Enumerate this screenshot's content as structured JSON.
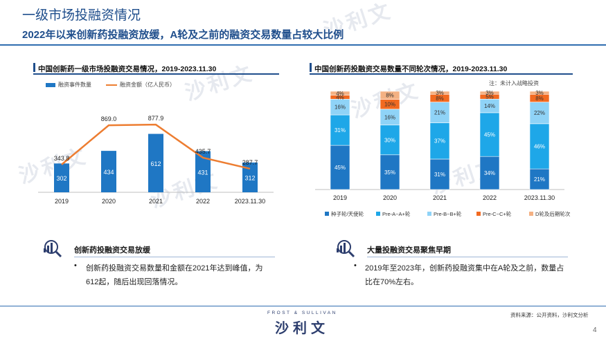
{
  "page": {
    "title": "一级市场投融资情况",
    "subtitle": "2022年以来创新药投融资放缓，A轮及之前的融资交易数量占较大比例",
    "page_number": "4",
    "source": "资料来源：公开资料，沙利文分析",
    "brand_small": "FROST & SULLIVAN",
    "brand_large": "沙利文",
    "watermark": "沙利文"
  },
  "left_panel": {
    "title": "中国创新药一级市场投融资交易情况，2019-2023.11.30",
    "legend": [
      "融资事件数量",
      "融资金额（亿人民币）"
    ]
  },
  "right_panel": {
    "title": "中国创新药投融资交易数量不同轮次情况，2019-2023.11.30",
    "note": "注：未计入战略投资",
    "legend": [
      "种子轮/天使轮",
      "Pre-A~A+轮",
      "Pre-B~B+轮",
      "Pre-C~C+轮",
      "D轮及后期轮次"
    ]
  },
  "chart_data": [
    {
      "type": "bar",
      "title": "中国创新药一级市场投融资交易情况，2019-2023.11.30",
      "categories": [
        "2019",
        "2020",
        "2021",
        "2022",
        "2023.11.30"
      ],
      "series": [
        {
          "name": "融资事件数量",
          "type": "bar",
          "values": [
            302,
            434,
            612,
            431,
            312
          ],
          "color": "#1f77c4"
        },
        {
          "name": "融资金额（亿人民币）",
          "type": "line",
          "values": [
            343.8,
            869.0,
            877.9,
            435.7,
            287.7
          ],
          "labels": [
            "343.8",
            "869.0",
            "877.9",
            "435.7",
            "287.7"
          ],
          "color": "#ed7d31"
        }
      ],
      "legend_position": "top-left",
      "grid": false
    },
    {
      "type": "bar",
      "stacked": true,
      "percent": true,
      "title": "中国创新药投融资交易数量不同轮次情况，2019-2023.11.30",
      "categories": [
        "2019",
        "2020",
        "2021",
        "2022",
        "2023.11.30"
      ],
      "series": [
        {
          "name": "种子轮/天使轮",
          "values": [
            45,
            35,
            31,
            34,
            21
          ],
          "labels": [
            "45%",
            "35%",
            "31%",
            "34%",
            "21%"
          ],
          "color": "#1f77c4"
        },
        {
          "name": "Pre-A~A+轮",
          "values": [
            31,
            30,
            37,
            45,
            46
          ],
          "labels": [
            "31%",
            "30%",
            "37%",
            "45%",
            "46%"
          ],
          "color": "#1ea7e8"
        },
        {
          "name": "Pre-B~B+轮",
          "values": [
            16,
            16,
            21,
            14,
            22
          ],
          "labels": [
            "16%",
            "16%",
            "21%",
            "14%",
            "22%"
          ],
          "color": "#8fd3f7"
        },
        {
          "name": "Pre-C~C+轮",
          "values": [
            4,
            10,
            8,
            5,
            8
          ],
          "labels": [
            "4%",
            "10%",
            "8%",
            "5%",
            "8%"
          ],
          "color": "#f26a21"
        },
        {
          "name": "D轮及后期轮次",
          "values": [
            4,
            8,
            3,
            3,
            3
          ],
          "labels": [
            "4%",
            "8%",
            "3%",
            "3%",
            "3%"
          ],
          "color": "#f4b183"
        }
      ],
      "ylim": [
        0,
        100
      ],
      "legend_position": "bottom",
      "grid": false
    }
  ],
  "insights": [
    {
      "heading": "创新药投融资交易放缓",
      "bullet": "创新药投融资交易数量和金额在2021年达到峰值，为612起，随后出现回落情况。",
      "icon": "analytics-magnifier-icon"
    },
    {
      "heading": "大量投融资交易聚焦早期",
      "bullet": "2019年至2023年，创新药投融资集中在A轮及之前，数量占比在70%左右。",
      "icon": "analytics-magnifier-icon"
    }
  ]
}
